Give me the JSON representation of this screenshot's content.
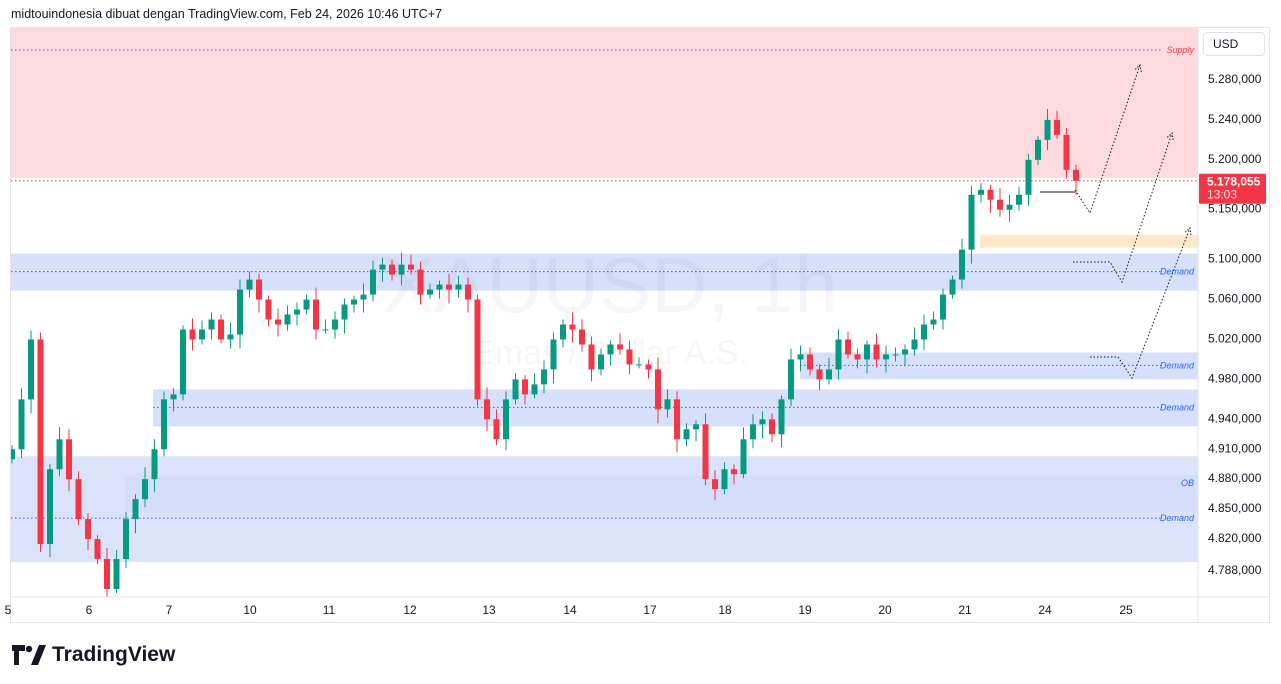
{
  "header": {
    "attribution": "midtouindonesia dibuat dengan TradingView.com, Feb 24, 2026 10:46 UTC+7"
  },
  "watermark": {
    "symbol": "XAUUSD, 1h",
    "description": "Emas / Dollar A.S."
  },
  "price_axis": {
    "currency": "USD",
    "last_price_label": "5.178,055",
    "countdown": "13:03"
  },
  "branding": {
    "logo_text": "TradingView"
  },
  "colors": {
    "up": "#089981",
    "down": "#f23645",
    "supply_zone": "#fcdadd",
    "demand_zone": "#d6e0fb",
    "ob_zone": "#bccdfb",
    "level_line": "#2962ff",
    "orange_zone": "#fde9c8"
  },
  "chart_data": {
    "type": "candlestick",
    "title": "XAUUSD, 1h",
    "ylim": [
      4770,
      5330
    ],
    "y_ticks": [
      {
        "v": 5280,
        "label": "5.280,000"
      },
      {
        "v": 5240,
        "label": "5.240,000"
      },
      {
        "v": 5200,
        "label": "5.200,000"
      },
      {
        "v": 5150,
        "label": "5.150,000"
      },
      {
        "v": 5100,
        "label": "5.100,000"
      },
      {
        "v": 5060,
        "label": "5.060,000"
      },
      {
        "v": 5020,
        "label": "5.020,000"
      },
      {
        "v": 4980,
        "label": "4.980,000"
      },
      {
        "v": 4940,
        "label": "4.940,000"
      },
      {
        "v": 4910,
        "label": "4.910,000"
      },
      {
        "v": 4880,
        "label": "4.880,000"
      },
      {
        "v": 4850,
        "label": "4.850,000"
      },
      {
        "v": 4820,
        "label": "4.820,000"
      },
      {
        "v": 4788,
        "label": "4.788,000"
      }
    ],
    "x_ticks": [
      "5",
      "6",
      "7",
      "10",
      "11",
      "12",
      "13",
      "14",
      "17",
      "18",
      "19",
      "20",
      "21",
      "24",
      "25"
    ],
    "closes": [
      4909,
      4959,
      5019,
      4814,
      4889,
      4919,
      4879,
      4839,
      4819,
      4799,
      4769,
      4799,
      4839,
      4859,
      4879,
      4909,
      4959,
      4964,
      5029,
      5019,
      5029,
      5039,
      5019,
      5024,
      5069,
      5079,
      5059,
      5039,
      5034,
      5044,
      5049,
      5059,
      5029,
      5029,
      5039,
      5054,
      5059,
      5064,
      5089,
      5094,
      5084,
      5094,
      5089,
      5064,
      5069,
      5074,
      5069,
      5074,
      5059,
      4959,
      4939,
      4919,
      4959,
      4979,
      4964,
      4974,
      4989,
      5019,
      5034,
      5029,
      5014,
      4989,
      5004,
      5014,
      5009,
      4994,
      4994,
      4989,
      4949,
      4959,
      4919,
      4929,
      4934,
      4879,
      4869,
      4889,
      4884,
      4919,
      4934,
      4939,
      4924,
      4959,
      4999,
      5004,
      4989,
      4979,
      4989,
      5019,
      5004,
      4999,
      5014,
      4999,
      5004,
      5004,
      5009,
      5019,
      5034,
      5039,
      5064,
      5079,
      5109,
      5164,
      5169,
      5159,
      5149,
      5154,
      5164,
      5199,
      5219,
      5239,
      5224,
      5189,
      5178
    ],
    "last_price": 5178.055,
    "zones": [
      {
        "label": "Supply",
        "type": "supply",
        "top": 5335,
        "bottom": 5181,
        "level": 5309,
        "start_day": "5"
      },
      {
        "label": "Demand",
        "type": "demand",
        "top": 5105,
        "bottom": 5068,
        "level": 5087,
        "start_day": "5"
      },
      {
        "label": "Demand",
        "type": "demand",
        "top": 5006,
        "bottom": 4979,
        "level": 4993,
        "start_day": "19"
      },
      {
        "label": "Demand",
        "type": "demand",
        "top": 4969,
        "bottom": 4932,
        "level": 4951,
        "start_day": "7"
      },
      {
        "label": "OB",
        "type": "ob",
        "top": 4883,
        "bottom": 4846,
        "level": 4875,
        "start_day": "6"
      },
      {
        "label": "Demand",
        "type": "demand",
        "top": 4902,
        "bottom": 4796,
        "level": 4840,
        "start_day": "5"
      },
      {
        "label": "",
        "type": "orange",
        "top": 5124,
        "bottom": 5111,
        "level": null,
        "start_day": "21"
      }
    ]
  }
}
